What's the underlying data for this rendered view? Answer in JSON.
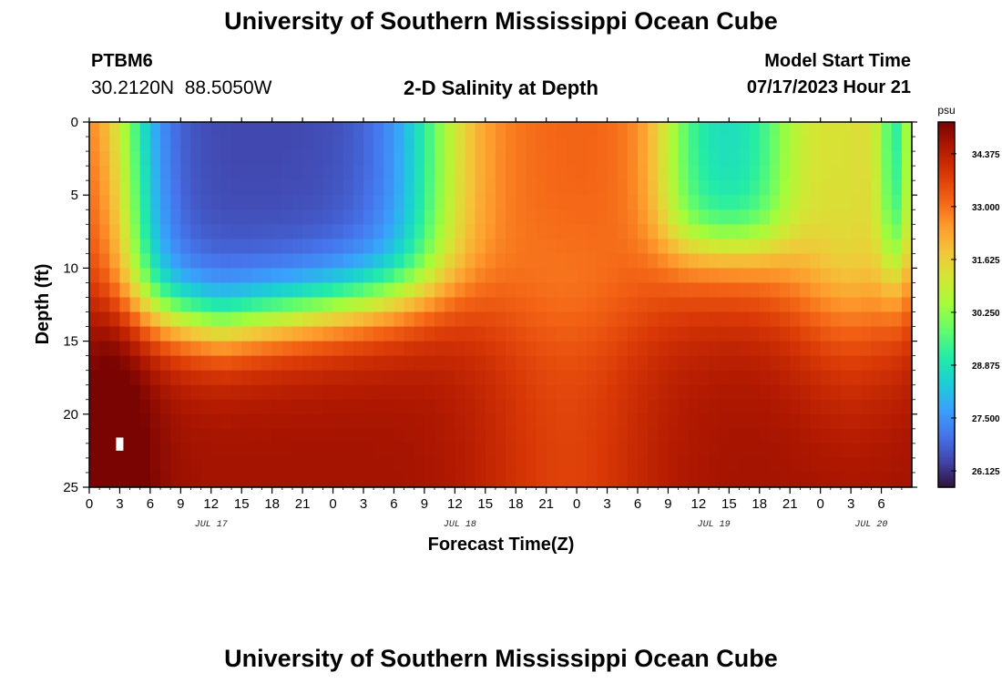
{
  "header": {
    "title": "University of Southern Mississippi Ocean Cube",
    "station_id": "PTBM6",
    "station_coords": "30.2120N  88.5050W",
    "subtitle": "2-D Salinity at Depth",
    "start_label": "Model Start Time",
    "start_value": "07/17/2023 Hour 21"
  },
  "footer": {
    "title": "University of Southern Mississippi Ocean Cube"
  },
  "chart_data": {
    "type": "heatmap",
    "title": "2-D Salinity at Depth",
    "xlabel": "Forecast Time(Z)",
    "ylabel": "Depth (ft)",
    "x_range_hours": [
      0,
      81
    ],
    "x_tick_labels": [
      "0",
      "3",
      "6",
      "9",
      "12",
      "15",
      "18",
      "21",
      "0",
      "3",
      "6",
      "9",
      "12",
      "15",
      "18",
      "21",
      "0",
      "3",
      "6",
      "9",
      "12",
      "15",
      "18",
      "21",
      "0",
      "3",
      "6"
    ],
    "date_labels": [
      {
        "label": "JUL 17",
        "hour": 12
      },
      {
        "label": "JUL 18",
        "hour": 36.5
      },
      {
        "label": "JUL 19",
        "hour": 61.5
      },
      {
        "label": "JUL 20",
        "hour": 77
      }
    ],
    "y_range_ft": [
      0,
      25
    ],
    "y_ticks": [
      0,
      5,
      10,
      15,
      20,
      25
    ],
    "y_tick_labels": [
      "0",
      "5",
      "10",
      "15",
      "20",
      "25"
    ],
    "colorbar": {
      "unit": "psu",
      "range": [
        25.7,
        35.2
      ],
      "ticks": [
        34.375,
        33.0,
        31.625,
        30.25,
        28.875,
        27.5,
        26.125
      ],
      "tick_labels": [
        "34.375",
        "33.000",
        "31.625",
        "30.250",
        "28.875",
        "27.500",
        "26.125"
      ],
      "colors": [
        "#30123b",
        "#4145ab",
        "#4675ed",
        "#39a2fc",
        "#1bcfd4",
        "#24eca6",
        "#61fc6c",
        "#a4fc3b",
        "#d1e834",
        "#f3c63a",
        "#fe9b2d",
        "#f36315",
        "#d93806",
        "#b11901",
        "#7a0402"
      ]
    },
    "description_of_field": "Surface-to-mid depths are fresh (26-30 psu) from hour ~4 to ~36 and ~60 to ~77; deep water (15-25 ft) is salty (34-35.5 psu) throughout; around hours 40-50 the water column is well mixed near 33-33.5 psu."
  }
}
